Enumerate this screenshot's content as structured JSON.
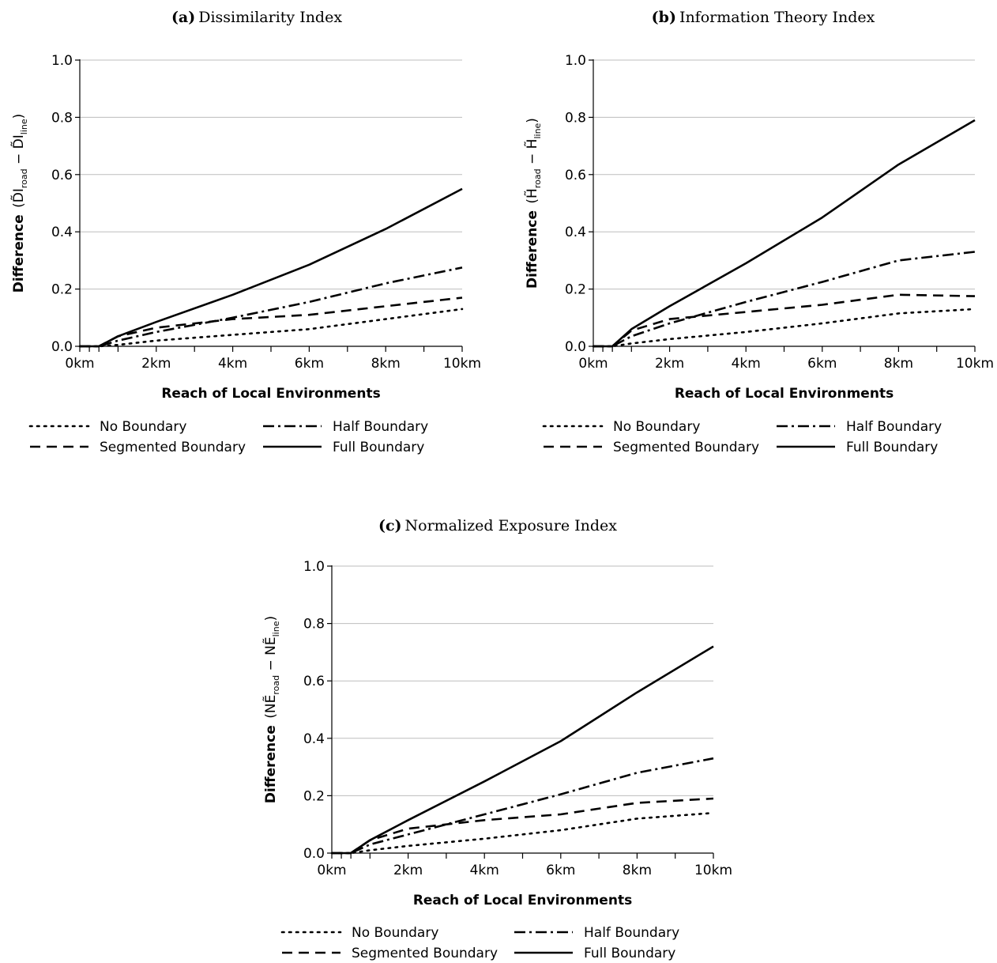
{
  "chart_data": [
    {
      "type": "line",
      "panel_label": "(a)",
      "title": "Dissimilarity Index",
      "xlabel": "Reach of Local Environments",
      "ylabel": {
        "main": "Difference",
        "sym": "D̃I",
        "sub_a": "road",
        "sub_b": "line"
      },
      "xlim": [
        0,
        10
      ],
      "ylim": [
        0,
        1.0
      ],
      "x_ticks": [
        0,
        0.25,
        0.5,
        1,
        2,
        3,
        4,
        5,
        6,
        7,
        8,
        9,
        10
      ],
      "x_tick_labels": [
        {
          "x": 0,
          "label": "0km"
        },
        {
          "x": 2,
          "label": "2km"
        },
        {
          "x": 4,
          "label": "4km"
        },
        {
          "x": 6,
          "label": "6km"
        },
        {
          "x": 8,
          "label": "8km"
        },
        {
          "x": 10,
          "label": "10km"
        }
      ],
      "y_ticks": [
        0.0,
        0.2,
        0.4,
        0.6,
        0.8,
        1.0
      ],
      "y_tick_labels": [
        "0.0",
        "0.2",
        "0.4",
        "0.6",
        "0.8",
        "1.0"
      ],
      "grid": "horizontal",
      "series": [
        {
          "name": "No Boundary",
          "style": "dotted",
          "x": [
            0,
            0.25,
            0.5,
            1,
            2,
            4,
            6,
            8,
            10
          ],
          "y": [
            0,
            0,
            0,
            0.005,
            0.02,
            0.04,
            0.06,
            0.095,
            0.13
          ]
        },
        {
          "name": "Segmented Boundary",
          "style": "dashed",
          "x": [
            0,
            0.25,
            0.5,
            1,
            2,
            4,
            6,
            8,
            10
          ],
          "y": [
            0,
            0,
            0,
            0.035,
            0.065,
            0.095,
            0.11,
            0.14,
            0.17
          ]
        },
        {
          "name": "Half Boundary",
          "style": "dashdot",
          "x": [
            0,
            0.25,
            0.5,
            1,
            2,
            4,
            6,
            8,
            10
          ],
          "y": [
            0,
            0,
            0,
            0.02,
            0.05,
            0.1,
            0.155,
            0.22,
            0.275
          ]
        },
        {
          "name": "Full Boundary",
          "style": "solid",
          "x": [
            0,
            0.25,
            0.5,
            1,
            2,
            4,
            6,
            8,
            10
          ],
          "y": [
            0,
            0,
            0,
            0.035,
            0.085,
            0.18,
            0.285,
            0.41,
            0.55
          ]
        }
      ]
    },
    {
      "type": "line",
      "panel_label": "(b)",
      "title": "Information Theory Index",
      "xlabel": "Reach of Local Environments",
      "ylabel": {
        "main": "Difference",
        "sym": "H̃",
        "sub_a": "road",
        "sub_b": "line"
      },
      "xlim": [
        0,
        10
      ],
      "ylim": [
        0,
        1.0
      ],
      "x_ticks": [
        0,
        0.25,
        0.5,
        1,
        2,
        3,
        4,
        5,
        6,
        7,
        8,
        9,
        10
      ],
      "x_tick_labels": [
        {
          "x": 0,
          "label": "0km"
        },
        {
          "x": 2,
          "label": "2km"
        },
        {
          "x": 4,
          "label": "4km"
        },
        {
          "x": 6,
          "label": "6km"
        },
        {
          "x": 8,
          "label": "8km"
        },
        {
          "x": 10,
          "label": "10km"
        }
      ],
      "y_ticks": [
        0.0,
        0.2,
        0.4,
        0.6,
        0.8,
        1.0
      ],
      "y_tick_labels": [
        "0.0",
        "0.2",
        "0.4",
        "0.6",
        "0.8",
        "1.0"
      ],
      "grid": "horizontal",
      "series": [
        {
          "name": "No Boundary",
          "style": "dotted",
          "x": [
            0,
            0.25,
            0.5,
            1,
            2,
            4,
            6,
            8,
            10
          ],
          "y": [
            0,
            0,
            0,
            0.01,
            0.025,
            0.05,
            0.08,
            0.115,
            0.13
          ]
        },
        {
          "name": "Segmented Boundary",
          "style": "dashed",
          "x": [
            0,
            0.25,
            0.5,
            1,
            2,
            4,
            6,
            8,
            10
          ],
          "y": [
            0,
            0,
            0,
            0.055,
            0.095,
            0.12,
            0.145,
            0.18,
            0.175
          ]
        },
        {
          "name": "Half Boundary",
          "style": "dashdot",
          "x": [
            0,
            0.25,
            0.5,
            1,
            2,
            4,
            6,
            8,
            10
          ],
          "y": [
            0,
            0,
            0,
            0.035,
            0.08,
            0.155,
            0.225,
            0.3,
            0.33
          ]
        },
        {
          "name": "Full Boundary",
          "style": "solid",
          "x": [
            0,
            0.25,
            0.5,
            1,
            2,
            4,
            6,
            8,
            10
          ],
          "y": [
            0,
            0,
            0,
            0.06,
            0.14,
            0.29,
            0.45,
            0.635,
            0.79
          ]
        }
      ]
    },
    {
      "type": "line",
      "panel_label": "(c)",
      "title": "Normalized Exposure Index",
      "xlabel": "Reach of Local Environments",
      "ylabel": {
        "main": "Difference",
        "sym": "NẼ",
        "sub_a": "road",
        "sub_b": "line"
      },
      "xlim": [
        0,
        10
      ],
      "ylim": [
        0,
        1.0
      ],
      "x_ticks": [
        0,
        0.25,
        0.5,
        1,
        2,
        3,
        4,
        5,
        6,
        7,
        8,
        9,
        10
      ],
      "x_tick_labels": [
        {
          "x": 0,
          "label": "0km"
        },
        {
          "x": 2,
          "label": "2km"
        },
        {
          "x": 4,
          "label": "4km"
        },
        {
          "x": 6,
          "label": "6km"
        },
        {
          "x": 8,
          "label": "8km"
        },
        {
          "x": 10,
          "label": "10km"
        }
      ],
      "y_ticks": [
        0.0,
        0.2,
        0.4,
        0.6,
        0.8,
        1.0
      ],
      "y_tick_labels": [
        "0.0",
        "0.2",
        "0.4",
        "0.6",
        "0.8",
        "1.0"
      ],
      "grid": "horizontal",
      "series": [
        {
          "name": "No Boundary",
          "style": "dotted",
          "x": [
            0,
            0.25,
            0.5,
            1,
            2,
            4,
            6,
            8,
            10
          ],
          "y": [
            0,
            0,
            0,
            0.01,
            0.025,
            0.05,
            0.08,
            0.12,
            0.14
          ]
        },
        {
          "name": "Segmented Boundary",
          "style": "dashed",
          "x": [
            0,
            0.25,
            0.5,
            1,
            2,
            4,
            6,
            8,
            10
          ],
          "y": [
            0,
            0,
            0,
            0.045,
            0.085,
            0.115,
            0.135,
            0.175,
            0.19
          ]
        },
        {
          "name": "Half Boundary",
          "style": "dashdot",
          "x": [
            0,
            0.25,
            0.5,
            1,
            2,
            4,
            6,
            8,
            10
          ],
          "y": [
            0,
            0,
            0,
            0.03,
            0.065,
            0.135,
            0.205,
            0.28,
            0.33
          ]
        },
        {
          "name": "Full Boundary",
          "style": "solid",
          "x": [
            0,
            0.25,
            0.5,
            1,
            2,
            4,
            6,
            8,
            10
          ],
          "y": [
            0,
            0,
            0,
            0.045,
            0.115,
            0.25,
            0.39,
            0.56,
            0.72
          ]
        }
      ]
    }
  ],
  "legend": {
    "columns": 2,
    "entries": [
      {
        "name": "No Boundary",
        "style": "dotted"
      },
      {
        "name": "Half Boundary",
        "style": "dashdot"
      },
      {
        "name": "Segmented Boundary",
        "style": "dashed"
      },
      {
        "name": "Full Boundary",
        "style": "solid"
      }
    ]
  },
  "colors": {
    "line": "#000000",
    "grid": "#bdbdbd",
    "background": "#ffffff"
  }
}
